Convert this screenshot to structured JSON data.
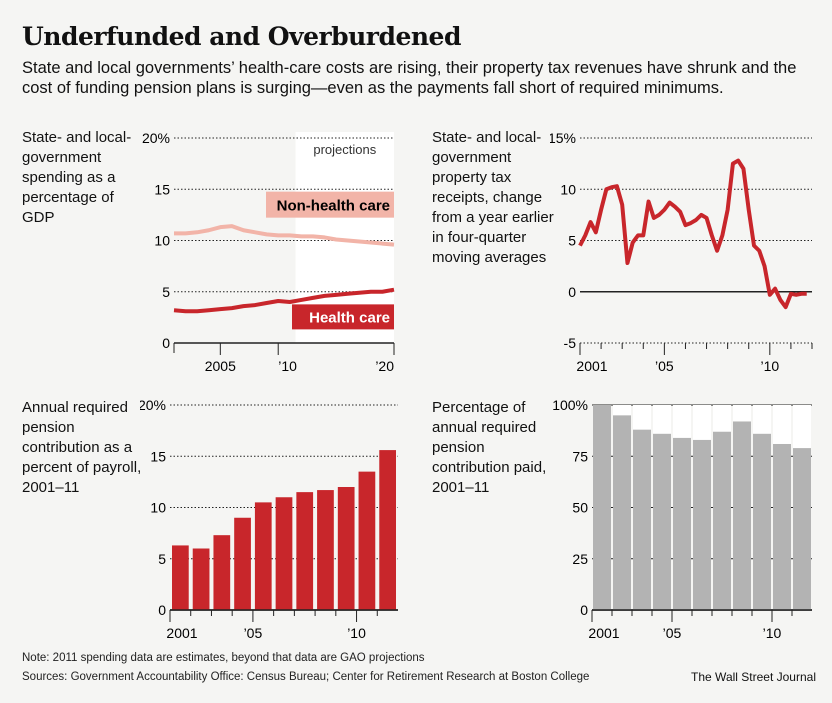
{
  "title": "Underfunded and Overburdened",
  "subtitle": "State and local governments’ health-care costs are rising, their property tax revenues have shrunk and the cost of funding pension plans is surging—even as the payments fall short of required minimums.",
  "note": "Note: 2011 spending data are estimates, beyond that data are GAO projections",
  "sources": "Sources: Government Accountability Office: Census Bureau; Center for Retirement Research at Boston College",
  "credit": "The Wall Street Journal",
  "colors": {
    "red": "#c8262b",
    "pink": "#f2b4a8",
    "gray": "#b3b3b3",
    "grid": "#222"
  },
  "chart_data": [
    {
      "type": "line",
      "label": "State- and local- government spending as a percentage of GDP",
      "ylim": [
        0,
        20
      ],
      "yticks": [
        "0",
        "5",
        "10",
        "15",
        "20%"
      ],
      "xlim": [
        2001,
        2020
      ],
      "xticks": [
        {
          "x": 2005,
          "label": "2005"
        },
        {
          "x": 2010,
          "label": "’10"
        },
        {
          "x": 2020,
          "label": "’20"
        }
      ],
      "annotation": "projections",
      "projection_start": 2011.5,
      "series": [
        {
          "name": "Non-health care",
          "color": "#f2b4a8",
          "x": [
            2001,
            2002,
            2003,
            2004,
            2005,
            2006,
            2007,
            2008,
            2009,
            2010,
            2011,
            2012,
            2013,
            2014,
            2015,
            2016,
            2017,
            2018,
            2019,
            2020
          ],
          "y": [
            10.7,
            10.7,
            10.8,
            11.0,
            11.3,
            11.4,
            11.0,
            10.8,
            10.6,
            10.5,
            10.5,
            10.4,
            10.4,
            10.3,
            10.1,
            10.0,
            9.9,
            9.8,
            9.7,
            9.6
          ]
        },
        {
          "name": "Health care",
          "color": "#c8262b",
          "x": [
            2001,
            2002,
            2003,
            2004,
            2005,
            2006,
            2007,
            2008,
            2009,
            2010,
            2011,
            2012,
            2013,
            2014,
            2015,
            2016,
            2017,
            2018,
            2019,
            2020
          ],
          "y": [
            3.2,
            3.1,
            3.1,
            3.2,
            3.3,
            3.4,
            3.6,
            3.7,
            3.9,
            4.1,
            4.0,
            4.2,
            4.4,
            4.6,
            4.7,
            4.8,
            4.9,
            5.0,
            5.0,
            5.2
          ]
        }
      ]
    },
    {
      "type": "line",
      "label": "State- and local- government property tax receipts, change from a year earlier in four-quarter moving averages",
      "ylim": [
        -5,
        15
      ],
      "yticks": [
        "-5",
        "0",
        "5",
        "10",
        "15%"
      ],
      "xlim": [
        2001,
        2012
      ],
      "xticks": [
        {
          "x": 2001,
          "label": "2001"
        },
        {
          "x": 2005,
          "label": "’05"
        },
        {
          "x": 2010,
          "label": "’10"
        }
      ],
      "series": [
        {
          "name": "",
          "color": "#c8262b",
          "x": [
            2001,
            2001.25,
            2001.5,
            2001.75,
            2002,
            2002.25,
            2002.5,
            2002.75,
            2003,
            2003.25,
            2003.5,
            2003.75,
            2004,
            2004.25,
            2004.5,
            2004.75,
            2005,
            2005.25,
            2005.5,
            2005.75,
            2006,
            2006.25,
            2006.5,
            2006.75,
            2007,
            2007.25,
            2007.5,
            2007.75,
            2008,
            2008.25,
            2008.5,
            2008.75,
            2009,
            2009.25,
            2009.5,
            2009.75,
            2010,
            2010.25,
            2010.5,
            2010.75,
            2011,
            2011.25,
            2011.5,
            2011.75
          ],
          "y": [
            4.5,
            5.5,
            6.8,
            5.8,
            8.0,
            10.0,
            10.2,
            10.3,
            8.5,
            2.8,
            4.8,
            5.5,
            5.5,
            8.8,
            7.2,
            7.5,
            8.0,
            8.7,
            8.3,
            7.8,
            6.5,
            6.7,
            7.0,
            7.5,
            7.2,
            5.5,
            4.0,
            5.5,
            8.0,
            12.5,
            12.8,
            12.0,
            8.0,
            4.5,
            4.0,
            2.5,
            -0.3,
            0.3,
            -0.8,
            -1.5,
            -0.2,
            -0.3,
            -0.2,
            -0.2
          ]
        }
      ]
    },
    {
      "type": "bar",
      "label": "Annual required pension contribution as a percent of payroll, 2001–11",
      "ylim": [
        0,
        20
      ],
      "yticks": [
        "0",
        "5",
        "10",
        "15",
        "20%"
      ],
      "categories": [
        "2001",
        "2002",
        "2003",
        "2004",
        "2005",
        "2006",
        "2007",
        "2008",
        "2009",
        "2010",
        "2011"
      ],
      "xticklabels": {
        "0": "2001",
        "4": "’05",
        "9": "’10"
      },
      "values": [
        6.3,
        6.0,
        7.3,
        9.0,
        10.5,
        11.0,
        11.5,
        11.7,
        12.0,
        13.5,
        15.6
      ],
      "color": "#c8262b"
    },
    {
      "type": "bar",
      "label": "Percentage of annual required pension contribution paid, 2001–11",
      "ylim": [
        0,
        100
      ],
      "yticks": [
        "0",
        "25",
        "50",
        "75",
        "100%"
      ],
      "categories": [
        "2001",
        "2002",
        "2003",
        "2004",
        "2005",
        "2006",
        "2007",
        "2008",
        "2009",
        "2010",
        "2011"
      ],
      "xticklabels": {
        "0": "2001",
        "4": "’05",
        "9": "’10"
      },
      "values": [
        100,
        95,
        88,
        86,
        84,
        83,
        87,
        92,
        86,
        81,
        79
      ],
      "color": "#b3b3b3"
    }
  ]
}
